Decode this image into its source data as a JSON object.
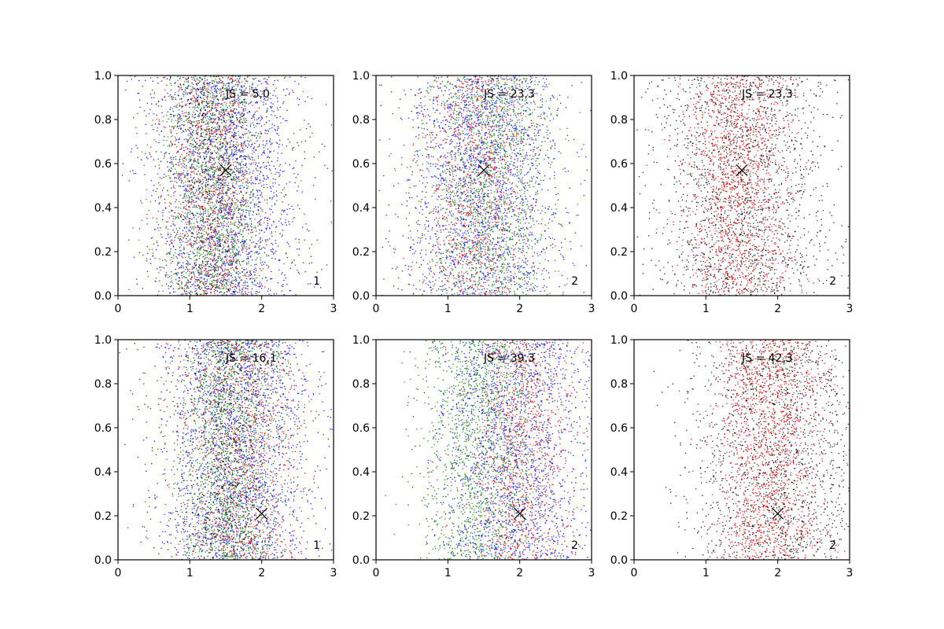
{
  "chart_data": [
    {
      "type": "scatter",
      "panel_label": "1",
      "annotation": "JS = 5,0",
      "xlim": [
        0,
        3
      ],
      "ylim": [
        0,
        1
      ],
      "xticks": [
        "0",
        "1",
        "2",
        "3"
      ],
      "yticks": [
        "0.0",
        "0.2",
        "0.4",
        "0.6",
        "0.8",
        "1.0"
      ],
      "marker": {
        "x": 1.5,
        "y": 0.57
      },
      "series": [
        {
          "color": "#0000ff",
          "center_x": 1.5,
          "spread_x": 0.55,
          "points": 2200
        },
        {
          "color": "#008000",
          "center_x": 1.3,
          "spread_x": 0.35,
          "points": 1300
        },
        {
          "color": "#ff0000",
          "center_x": 1.35,
          "spread_x": 0.35,
          "points": 1000
        },
        {
          "color": "#000000",
          "center_x": 1.3,
          "spread_x": 0.3,
          "points": 600
        }
      ]
    },
    {
      "type": "scatter",
      "panel_label": "2",
      "annotation": "JS = 23,3",
      "xlim": [
        0,
        3
      ],
      "ylim": [
        0,
        1
      ],
      "xticks": [
        "0",
        "1",
        "2",
        "3"
      ],
      "yticks": [
        "0.0",
        "0.2",
        "0.4",
        "0.6",
        "0.8",
        "1.0"
      ],
      "marker": {
        "x": 1.5,
        "y": 0.57
      },
      "series": [
        {
          "color": "#0000ff",
          "center_x": 1.5,
          "spread_x": 0.55,
          "points": 2200
        },
        {
          "color": "#008000",
          "center_x": 1.6,
          "spread_x": 0.45,
          "points": 1300
        },
        {
          "color": "#ff0000",
          "center_x": 1.4,
          "spread_x": 0.35,
          "points": 900
        }
      ]
    },
    {
      "type": "scatter",
      "panel_label": "2",
      "annotation": "JS = 23,3",
      "xlim": [
        0,
        3
      ],
      "ylim": [
        0,
        1
      ],
      "xticks": [
        "0",
        "1",
        "2",
        "3"
      ],
      "yticks": [
        "0.0",
        "0.2",
        "0.4",
        "0.6",
        "0.8",
        "1.0"
      ],
      "marker": {
        "x": 1.5,
        "y": 0.57
      },
      "series": [
        {
          "color": "#000000",
          "center_x": 1.5,
          "spread_x": 0.6,
          "points": 1700
        },
        {
          "color": "#ff0000",
          "center_x": 1.45,
          "spread_x": 0.4,
          "points": 1500
        }
      ]
    },
    {
      "type": "scatter",
      "panel_label": "1",
      "annotation": "JS = 16,1",
      "xlim": [
        0,
        3
      ],
      "ylim": [
        0,
        1
      ],
      "xticks": [
        "0",
        "1",
        "2",
        "3"
      ],
      "yticks": [
        "0.0",
        "0.2",
        "0.4",
        "0.6",
        "0.8",
        "1.0"
      ],
      "marker": {
        "x": 2.0,
        "y": 0.21
      },
      "series": [
        {
          "color": "#0000ff",
          "center_x": 1.6,
          "spread_x": 0.55,
          "points": 2200
        },
        {
          "color": "#008000",
          "center_x": 1.55,
          "spread_x": 0.35,
          "points": 1300
        },
        {
          "color": "#ff0000",
          "center_x": 1.7,
          "spread_x": 0.4,
          "points": 1000
        },
        {
          "color": "#000000",
          "center_x": 1.5,
          "spread_x": 0.35,
          "points": 600
        }
      ]
    },
    {
      "type": "scatter",
      "panel_label": "2",
      "annotation": "JS = 39,3",
      "xlim": [
        0,
        3
      ],
      "ylim": [
        0,
        1
      ],
      "xticks": [
        "0",
        "1",
        "2",
        "3"
      ],
      "yticks": [
        "0.0",
        "0.2",
        "0.4",
        "0.6",
        "0.8",
        "1.0"
      ],
      "marker": {
        "x": 2.0,
        "y": 0.21
      },
      "series": [
        {
          "color": "#0000ff",
          "center_x": 1.95,
          "spread_x": 0.55,
          "points": 2000
        },
        {
          "color": "#008000",
          "center_x": 1.45,
          "spread_x": 0.4,
          "points": 1300
        },
        {
          "color": "#ff0000",
          "center_x": 2.0,
          "spread_x": 0.35,
          "points": 1000
        }
      ]
    },
    {
      "type": "scatter",
      "panel_label": "2",
      "annotation": "JS = 42,3",
      "xlim": [
        0,
        3
      ],
      "ylim": [
        0,
        1
      ],
      "xticks": [
        "0",
        "1",
        "2",
        "3"
      ],
      "yticks": [
        "0.0",
        "0.2",
        "0.4",
        "0.6",
        "0.8",
        "1.0"
      ],
      "marker": {
        "x": 2.0,
        "y": 0.21
      },
      "series": [
        {
          "color": "#000000",
          "center_x": 2.0,
          "spread_x": 0.6,
          "points": 1600
        },
        {
          "color": "#ff0000",
          "center_x": 1.9,
          "spread_x": 0.4,
          "points": 1600
        }
      ]
    }
  ]
}
